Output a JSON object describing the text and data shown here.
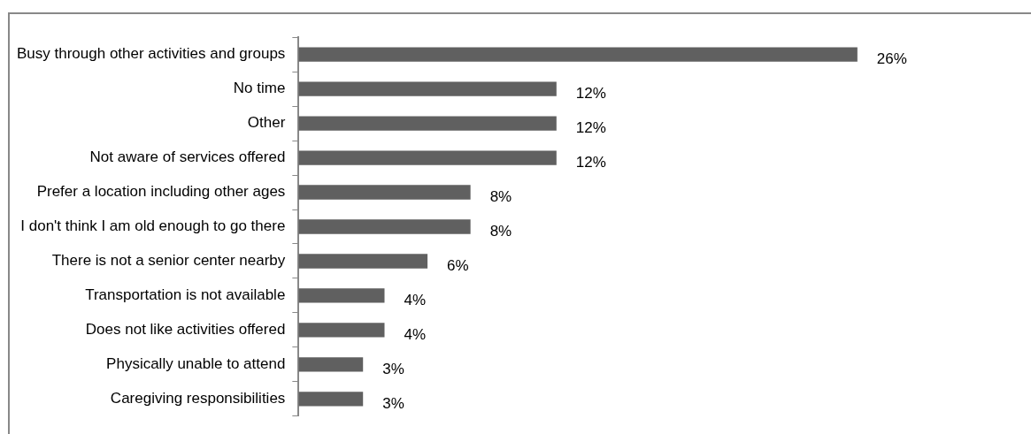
{
  "chart_data": {
    "type": "bar",
    "orientation": "horizontal",
    "categories": [
      "Busy through other activities and groups",
      "No time",
      "Other",
      "Not aware of services offered",
      "Prefer a location including other ages",
      "I don't think I am old enough to go there",
      "There is not a senior center nearby",
      "Transportation is not available",
      "Does not like activities offered",
      "Physically unable to attend",
      "Caregiving responsibilities"
    ],
    "values": [
      26,
      12,
      12,
      12,
      8,
      8,
      6,
      4,
      4,
      3,
      3
    ],
    "value_labels": [
      "26%",
      "12%",
      "12%",
      "12%",
      "8%",
      "8%",
      "6%",
      "4%",
      "4%",
      "3%",
      "3%"
    ],
    "color": "#606060",
    "tick_labels": "y",
    "legend": false
  }
}
